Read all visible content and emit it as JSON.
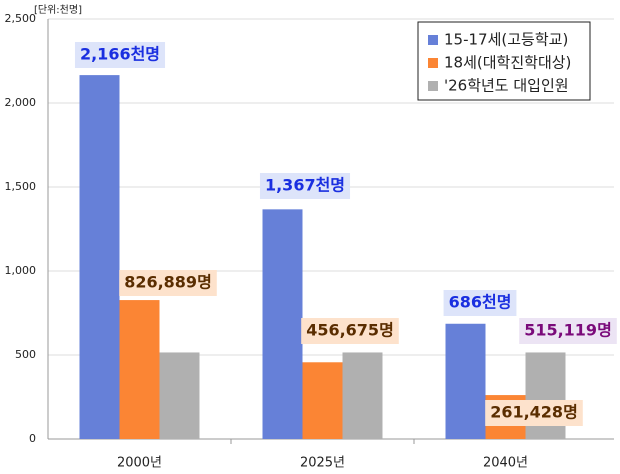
{
  "chart_data": {
    "type": "bar",
    "subtitle": "[단위:천명]",
    "categories": [
      "2000년",
      "2025년",
      "2040년"
    ],
    "series": [
      {
        "name": "15-17세(고등학교)",
        "color": "#6680d8",
        "values": [
          2166,
          1367,
          686
        ],
        "value_labels": [
          "2,166천명",
          "1,367천명",
          "686천명"
        ]
      },
      {
        "name": "18세(대학진학대상)",
        "color": "#fb8534",
        "values": [
          826.889,
          456.675,
          261.428
        ],
        "value_labels": [
          "826,889명",
          "456,675명",
          "261,428명"
        ]
      },
      {
        "name": "'26학년도 대입인원",
        "color": "#b0b0b0",
        "values": [
          515.119,
          515.119,
          515.119
        ],
        "value_labels": [
          null,
          null,
          "515,119명"
        ]
      }
    ],
    "ylim": [
      0,
      2500
    ],
    "yticks": [
      0,
      {
        "value": 500,
        "label": "500"
      },
      {
        "value": 1000,
        "label": "1,000"
      },
      {
        "value": 1500,
        "label": "1,500"
      },
      {
        "value": 2000,
        "label": "2,000"
      },
      {
        "value": 2500,
        "label": "2,500"
      }
    ],
    "grid": true,
    "legend": "top-right"
  }
}
